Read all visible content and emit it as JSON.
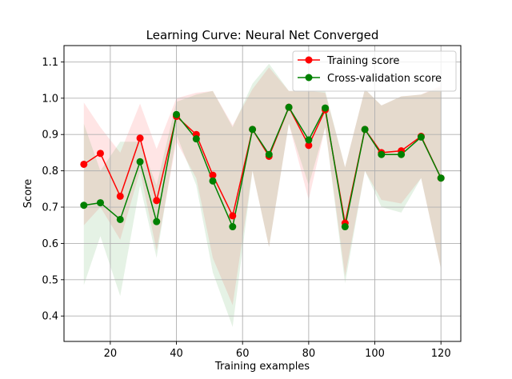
{
  "chart_data": {
    "type": "line",
    "title": "Learning Curve: Neural Net Converged",
    "xlabel": "Training examples",
    "ylabel": "Score",
    "xlim": [
      6,
      126
    ],
    "ylim": [
      0.33,
      1.145
    ],
    "xticks": [
      20,
      40,
      60,
      80,
      100,
      120
    ],
    "yticks": [
      0.4,
      0.5,
      0.6,
      0.7,
      0.8,
      0.9,
      1.0,
      1.1
    ],
    "grid": true,
    "legend": "top-right",
    "x": [
      12,
      17,
      23,
      29,
      34,
      40,
      46,
      51,
      57,
      63,
      68,
      74,
      80,
      85,
      91,
      97,
      102,
      108,
      114,
      120
    ],
    "series": [
      {
        "name": "Training score",
        "color": "#ff0000",
        "band_color": "#ff0000",
        "values": [
          0.818,
          0.848,
          0.73,
          0.89,
          0.718,
          0.95,
          0.9,
          0.788,
          0.676,
          0.914,
          0.84,
          0.975,
          0.87,
          0.968,
          0.656,
          0.914,
          0.85,
          0.855,
          0.895,
          0.78
        ],
        "lower": [
          0.65,
          0.7,
          0.61,
          0.8,
          0.58,
          0.88,
          0.78,
          0.56,
          0.43,
          0.8,
          0.59,
          0.93,
          0.72,
          0.92,
          0.51,
          0.8,
          0.72,
          0.71,
          0.78,
          0.53
        ],
        "upper": [
          0.988,
          0.92,
          0.85,
          0.985,
          0.86,
          1.0,
          1.015,
          1.02,
          0.925,
          1.025,
          1.085,
          1.02,
          1.02,
          1.015,
          0.81,
          1.025,
          0.98,
          1.005,
          1.01,
          1.035
        ]
      },
      {
        "name": "Cross-validation score",
        "color": "#008000",
        "band_color": "#008000",
        "values": [
          0.705,
          0.712,
          0.666,
          0.825,
          0.66,
          0.955,
          0.888,
          0.772,
          0.646,
          0.914,
          0.845,
          0.975,
          0.885,
          0.973,
          0.646,
          0.914,
          0.845,
          0.845,
          0.893,
          0.78
        ],
        "lower": [
          0.485,
          0.62,
          0.455,
          0.76,
          0.56,
          0.9,
          0.76,
          0.52,
          0.37,
          0.8,
          0.59,
          0.93,
          0.76,
          0.92,
          0.49,
          0.8,
          0.7,
          0.685,
          0.78,
          0.53
        ],
        "upper": [
          0.93,
          0.8,
          0.88,
          0.88,
          0.76,
          0.99,
          1.01,
          1.02,
          0.92,
          1.04,
          1.095,
          1.02,
          1.02,
          1.02,
          0.81,
          1.025,
          0.98,
          1.005,
          1.01,
          1.03
        ]
      }
    ]
  }
}
